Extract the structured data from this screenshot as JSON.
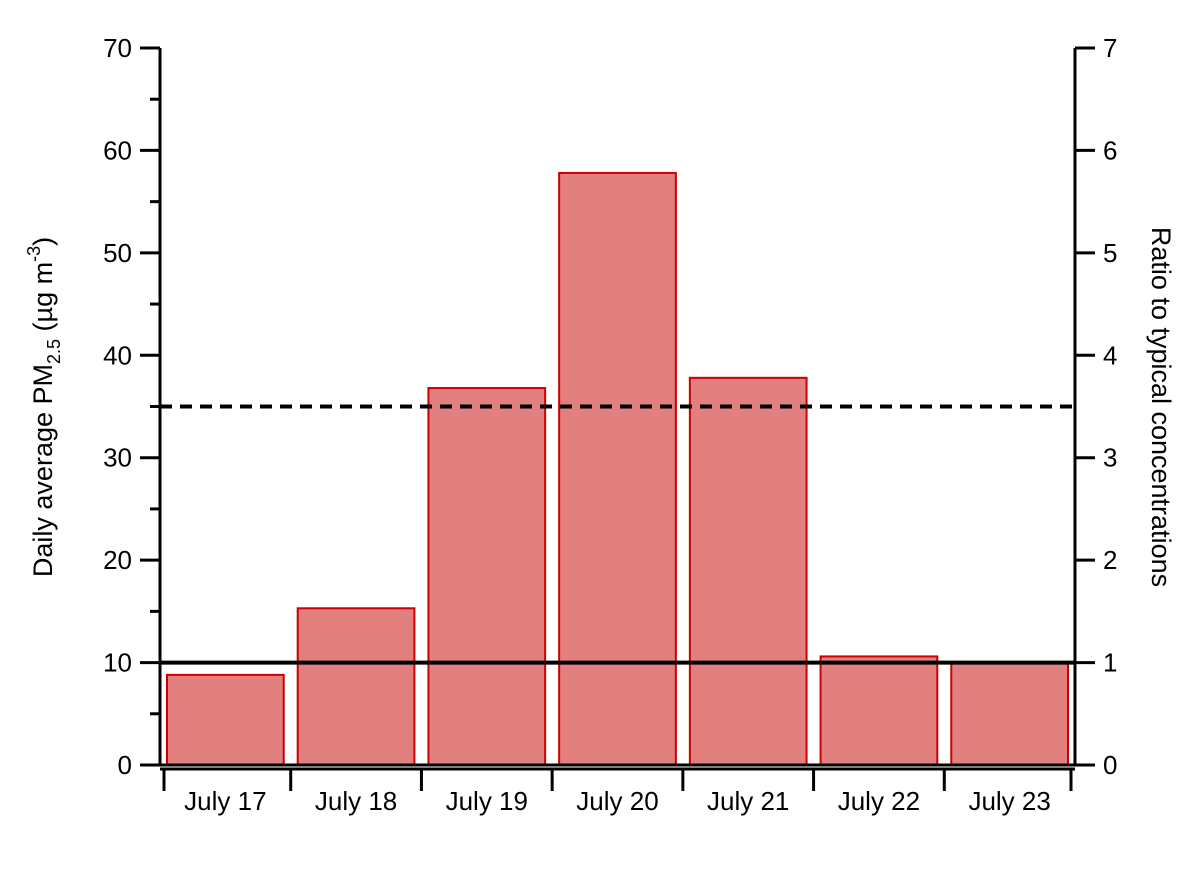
{
  "chart_data": {
    "type": "bar",
    "categories": [
      "July 17",
      "July 18",
      "July 19",
      "July 20",
      "July 21",
      "July 22",
      "July 23"
    ],
    "values": [
      8.8,
      15.3,
      36.8,
      57.8,
      37.8,
      10.6,
      10.0
    ],
    "ylabel_parts": {
      "main": "Daily average PM",
      "subscript": "2.5",
      "unit_open": " (µg m",
      "superscript": "-3",
      "unit_close": ")"
    },
    "y2label": "Ratio to typical concentrations",
    "ylim": [
      0,
      70
    ],
    "y_ticks": [
      0,
      10,
      20,
      30,
      40,
      50,
      60,
      70
    ],
    "y_minor_step": 5,
    "y2lim": [
      0,
      7
    ],
    "y2_ticks": [
      0,
      1,
      2,
      3,
      4,
      5,
      6,
      7
    ],
    "reference_lines": [
      {
        "y": 10,
        "style": "solid"
      },
      {
        "y": 35,
        "style": "dashed"
      }
    ],
    "grid": false,
    "bar_fill": "#e28080",
    "bar_stroke": "#cc0000"
  }
}
